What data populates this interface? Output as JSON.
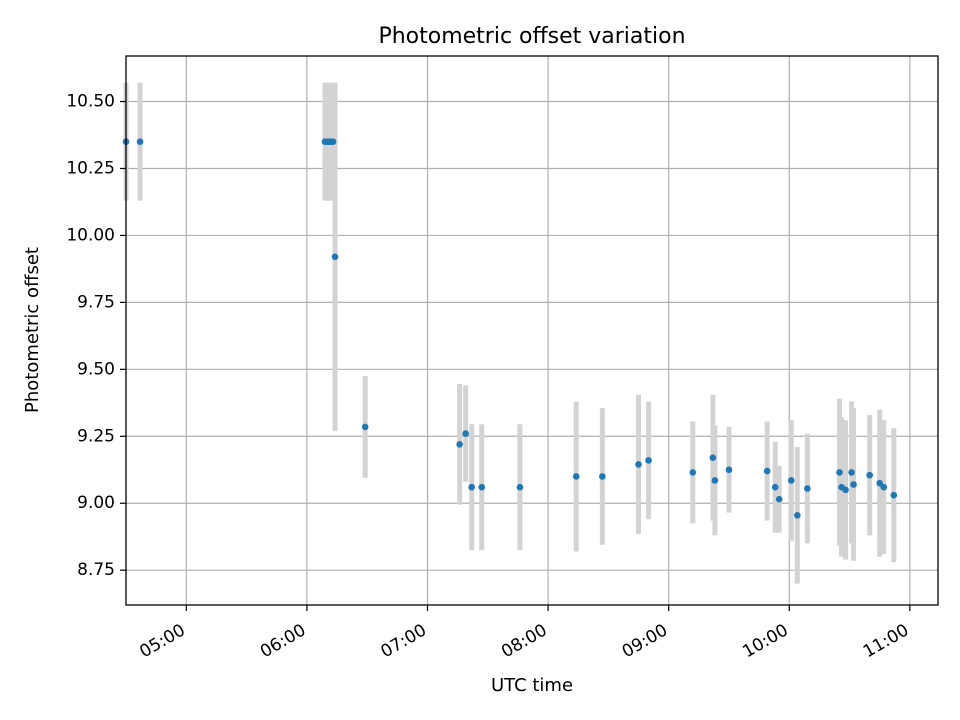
{
  "chart_data": {
    "type": "scatter",
    "title": "Photometric offset variation",
    "xlabel": "UTC time",
    "ylabel": "Photometric offset",
    "x_ticks": [
      "05:00",
      "06:00",
      "07:00",
      "08:00",
      "09:00",
      "10:00",
      "11:00"
    ],
    "y_ticks": [
      "8.75",
      "9.00",
      "9.25",
      "9.50",
      "9.75",
      "10.00",
      "10.25",
      "10.50"
    ],
    "xlim": [
      "04:30",
      "11:14"
    ],
    "ylim": [
      8.62,
      10.67
    ],
    "grid": true,
    "colors": {
      "point": "#1f77b4",
      "errorbar": "#d3d3d3",
      "grid": "#b0b0b0"
    },
    "points": [
      {
        "t": "04:30",
        "y": 10.35,
        "err": 0.22
      },
      {
        "t": "04:37",
        "y": 10.35,
        "err": 0.22
      },
      {
        "t": "06:09",
        "y": 10.35,
        "err": 0.22
      },
      {
        "t": "06:10",
        "y": 10.35,
        "err": 0.22
      },
      {
        "t": "06:11",
        "y": 10.35,
        "err": 0.22
      },
      {
        "t": "06:12",
        "y": 10.35,
        "err": 0.22
      },
      {
        "t": "06:13",
        "y": 10.35,
        "err": 0.22
      },
      {
        "t": "06:14",
        "y": 9.92,
        "err": 0.65
      },
      {
        "t": "06:29",
        "y": 9.285,
        "err": 0.19
      },
      {
        "t": "07:16",
        "y": 9.22,
        "err": 0.225
      },
      {
        "t": "07:19",
        "y": 9.26,
        "err": 0.18
      },
      {
        "t": "07:22",
        "y": 9.06,
        "err": 0.235
      },
      {
        "t": "07:27",
        "y": 9.06,
        "err": 0.235
      },
      {
        "t": "07:46",
        "y": 9.06,
        "err": 0.235
      },
      {
        "t": "08:14",
        "y": 9.1,
        "err": 0.28
      },
      {
        "t": "08:27",
        "y": 9.1,
        "err": 0.255
      },
      {
        "t": "08:45",
        "y": 9.145,
        "err": 0.26
      },
      {
        "t": "08:50",
        "y": 9.16,
        "err": 0.22
      },
      {
        "t": "09:12",
        "y": 9.115,
        "err": 0.19
      },
      {
        "t": "09:22",
        "y": 9.17,
        "err": 0.235
      },
      {
        "t": "09:23",
        "y": 9.085,
        "err": 0.205
      },
      {
        "t": "09:30",
        "y": 9.125,
        "err": 0.16
      },
      {
        "t": "09:49",
        "y": 9.12,
        "err": 0.185
      },
      {
        "t": "09:53",
        "y": 9.06,
        "err": 0.17
      },
      {
        "t": "09:55",
        "y": 9.015,
        "err": 0.125
      },
      {
        "t": "10:01",
        "y": 9.085,
        "err": 0.225
      },
      {
        "t": "10:04",
        "y": 8.955,
        "err": 0.255
      },
      {
        "t": "10:09",
        "y": 9.055,
        "err": 0.205
      },
      {
        "t": "10:25",
        "y": 9.115,
        "err": 0.275
      },
      {
        "t": "10:26",
        "y": 9.06,
        "err": 0.26
      },
      {
        "t": "10:28",
        "y": 9.05,
        "err": 0.26
      },
      {
        "t": "10:31",
        "y": 9.115,
        "err": 0.265
      },
      {
        "t": "10:32",
        "y": 9.07,
        "err": 0.285
      },
      {
        "t": "10:40",
        "y": 9.105,
        "err": 0.225
      },
      {
        "t": "10:45",
        "y": 9.075,
        "err": 0.275
      },
      {
        "t": "10:47",
        "y": 9.06,
        "err": 0.25
      },
      {
        "t": "10:52",
        "y": 9.03,
        "err": 0.25
      }
    ]
  }
}
